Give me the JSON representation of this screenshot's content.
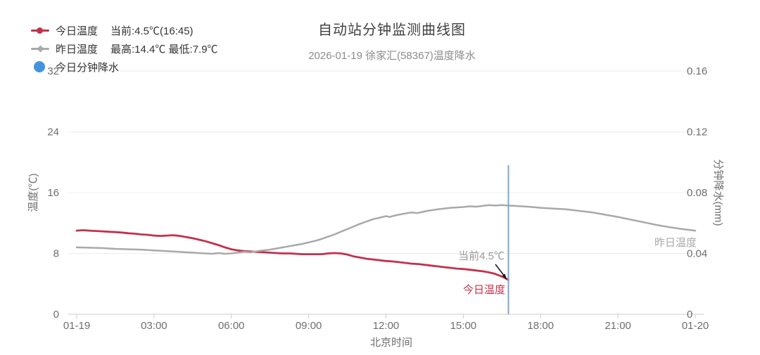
{
  "header": {
    "title": "自动站分钟监测曲线图",
    "subtitle": "2026-01-19 徐家汇(58367)温度降水"
  },
  "legend": {
    "items": [
      {
        "label": "今日温度",
        "value": "当前:4.5℃(16:45)",
        "color": "#c3314b",
        "marker": "line-circle"
      },
      {
        "label": "昨日温度",
        "value": "最高:14.4℃ 最低:7.9℃",
        "color": "#a9a9a9",
        "marker": "line-diamond"
      },
      {
        "label": "今日分钟降水",
        "value": "",
        "color": "#4593dd",
        "marker": "circle"
      }
    ]
  },
  "chart_data": {
    "type": "line",
    "title": "自动站分钟监测曲线图",
    "subtitle": "2026-01-19 徐家汇(58367)温度降水",
    "xlabel": "北京时间",
    "ylabel_left": "温度(℃)",
    "ylabel_right": "分钟降水(mm)",
    "grid": true,
    "legend_position": "top-left",
    "x_ticks": [
      {
        "label": "01-19",
        "hour": 0
      },
      {
        "label": "03:00",
        "hour": 3
      },
      {
        "label": "06:00",
        "hour": 6
      },
      {
        "label": "09:00",
        "hour": 9
      },
      {
        "label": "12:00",
        "hour": 12
      },
      {
        "label": "15:00",
        "hour": 15
      },
      {
        "label": "18:00",
        "hour": 18
      },
      {
        "label": "21:00",
        "hour": 21
      },
      {
        "label": "01-20",
        "hour": 24
      }
    ],
    "y_left": {
      "min": 0,
      "max": 32,
      "ticks": [
        0,
        8,
        16,
        24,
        32
      ]
    },
    "y_right": {
      "min": 0,
      "max": 0.16,
      "tick_labels": [
        "0",
        "0.04",
        "0.08",
        "0.12",
        "0.16"
      ]
    },
    "series": [
      {
        "name": "今日温度",
        "axis": "left",
        "color": "#c3314b",
        "stroke_width": 2.8,
        "points": [
          [
            0,
            11.0
          ],
          [
            0.25,
            11.05
          ],
          [
            0.5,
            11.0
          ],
          [
            0.75,
            10.95
          ],
          [
            1,
            10.9
          ],
          [
            1.25,
            10.85
          ],
          [
            1.5,
            10.8
          ],
          [
            1.75,
            10.75
          ],
          [
            2,
            10.65
          ],
          [
            2.25,
            10.6
          ],
          [
            2.5,
            10.5
          ],
          [
            2.75,
            10.45
          ],
          [
            3,
            10.35
          ],
          [
            3.25,
            10.3
          ],
          [
            3.5,
            10.35
          ],
          [
            3.75,
            10.4
          ],
          [
            4,
            10.3
          ],
          [
            4.25,
            10.15
          ],
          [
            4.5,
            10.0
          ],
          [
            4.75,
            9.8
          ],
          [
            5,
            9.6
          ],
          [
            5.25,
            9.35
          ],
          [
            5.5,
            9.1
          ],
          [
            5.75,
            8.8
          ],
          [
            6,
            8.55
          ],
          [
            6.25,
            8.4
          ],
          [
            6.5,
            8.3
          ],
          [
            6.75,
            8.25
          ],
          [
            7,
            8.2
          ],
          [
            7.25,
            8.15
          ],
          [
            7.5,
            8.1
          ],
          [
            7.75,
            8.05
          ],
          [
            8,
            8.0
          ],
          [
            8.25,
            8.0
          ],
          [
            8.5,
            7.95
          ],
          [
            8.75,
            7.9
          ],
          [
            9,
            7.9
          ],
          [
            9.25,
            7.9
          ],
          [
            9.5,
            7.9
          ],
          [
            9.75,
            8.0
          ],
          [
            10,
            8.05
          ],
          [
            10.25,
            8.0
          ],
          [
            10.5,
            7.85
          ],
          [
            10.75,
            7.6
          ],
          [
            11,
            7.45
          ],
          [
            11.25,
            7.3
          ],
          [
            11.5,
            7.2
          ],
          [
            11.75,
            7.1
          ],
          [
            12,
            7.0
          ],
          [
            12.25,
            6.95
          ],
          [
            12.5,
            6.85
          ],
          [
            12.75,
            6.75
          ],
          [
            13,
            6.65
          ],
          [
            13.25,
            6.6
          ],
          [
            13.5,
            6.5
          ],
          [
            13.75,
            6.4
          ],
          [
            14,
            6.3
          ],
          [
            14.25,
            6.2
          ],
          [
            14.5,
            6.1
          ],
          [
            14.75,
            6.0
          ],
          [
            15,
            5.95
          ],
          [
            15.25,
            5.85
          ],
          [
            15.5,
            5.75
          ],
          [
            15.75,
            5.65
          ],
          [
            16,
            5.5
          ],
          [
            16.2,
            5.35
          ],
          [
            16.4,
            5.1
          ],
          [
            16.6,
            4.8
          ],
          [
            16.75,
            4.5
          ]
        ]
      },
      {
        "name": "昨日温度",
        "axis": "left",
        "color": "#a9a9a9",
        "stroke_width": 2.5,
        "points": [
          [
            0,
            8.8
          ],
          [
            0.5,
            8.75
          ],
          [
            1,
            8.7
          ],
          [
            1.5,
            8.6
          ],
          [
            2,
            8.55
          ],
          [
            2.5,
            8.5
          ],
          [
            3,
            8.4
          ],
          [
            3.5,
            8.3
          ],
          [
            4,
            8.2
          ],
          [
            4.25,
            8.15
          ],
          [
            4.5,
            8.1
          ],
          [
            4.75,
            8.05
          ],
          [
            5,
            8.0
          ],
          [
            5.25,
            7.95
          ],
          [
            5.5,
            8.05
          ],
          [
            5.75,
            7.95
          ],
          [
            6,
            8.0
          ],
          [
            6.25,
            8.1
          ],
          [
            6.5,
            8.2
          ],
          [
            6.75,
            8.15
          ],
          [
            7,
            8.3
          ],
          [
            7.25,
            8.4
          ],
          [
            7.5,
            8.5
          ],
          [
            7.75,
            8.65
          ],
          [
            8,
            8.8
          ],
          [
            8.25,
            8.95
          ],
          [
            8.5,
            9.1
          ],
          [
            8.75,
            9.25
          ],
          [
            9,
            9.45
          ],
          [
            9.25,
            9.65
          ],
          [
            9.5,
            9.9
          ],
          [
            9.75,
            10.2
          ],
          [
            10,
            10.5
          ],
          [
            10.25,
            10.85
          ],
          [
            10.5,
            11.2
          ],
          [
            10.75,
            11.55
          ],
          [
            11,
            11.9
          ],
          [
            11.25,
            12.2
          ],
          [
            11.5,
            12.5
          ],
          [
            11.75,
            12.7
          ],
          [
            12,
            12.9
          ],
          [
            12.15,
            12.8
          ],
          [
            12.3,
            12.95
          ],
          [
            12.5,
            13.1
          ],
          [
            12.75,
            13.25
          ],
          [
            13,
            13.4
          ],
          [
            13.2,
            13.3
          ],
          [
            13.4,
            13.45
          ],
          [
            13.6,
            13.6
          ],
          [
            14,
            13.8
          ],
          [
            14.5,
            14.0
          ],
          [
            15,
            14.1
          ],
          [
            15.25,
            14.2
          ],
          [
            15.5,
            14.15
          ],
          [
            15.75,
            14.25
          ],
          [
            16,
            14.35
          ],
          [
            16.25,
            14.3
          ],
          [
            16.5,
            14.35
          ],
          [
            16.75,
            14.3
          ],
          [
            17,
            14.25
          ],
          [
            17.5,
            14.15
          ],
          [
            18,
            14.0
          ],
          [
            18.5,
            13.9
          ],
          [
            19,
            13.8
          ],
          [
            19.5,
            13.6
          ],
          [
            20,
            13.4
          ],
          [
            20.5,
            13.1
          ],
          [
            21,
            12.8
          ],
          [
            21.5,
            12.45
          ],
          [
            22,
            12.1
          ],
          [
            22.5,
            11.75
          ],
          [
            23,
            11.45
          ],
          [
            23.5,
            11.2
          ],
          [
            24,
            11.0
          ]
        ]
      },
      {
        "name": "今日分钟降水",
        "axis": "right",
        "color": "#4593dd",
        "stroke_width": 0,
        "points": []
      }
    ],
    "current_marker": {
      "hour": 16.75,
      "time_label": "16:45",
      "value": 4.5,
      "line_color": "#7aa6d6"
    },
    "stats": {
      "today_current": "4.5℃",
      "yesterday_max": "14.4℃",
      "yesterday_min": "7.9℃"
    },
    "annotations": {
      "current_text": {
        "text": "当前4.5℃",
        "color": "#999999"
      },
      "today_line_label": {
        "text": "今日温度",
        "color": "#c3314b"
      },
      "yesterday_line_label": {
        "text": "昨日温度",
        "color": "#aaaaaa"
      }
    },
    "colors": {
      "grid": "#ececec",
      "axis": "#ccccd1",
      "axis_text": "#6e6e6e",
      "arrow": "#1a1a1a"
    }
  }
}
